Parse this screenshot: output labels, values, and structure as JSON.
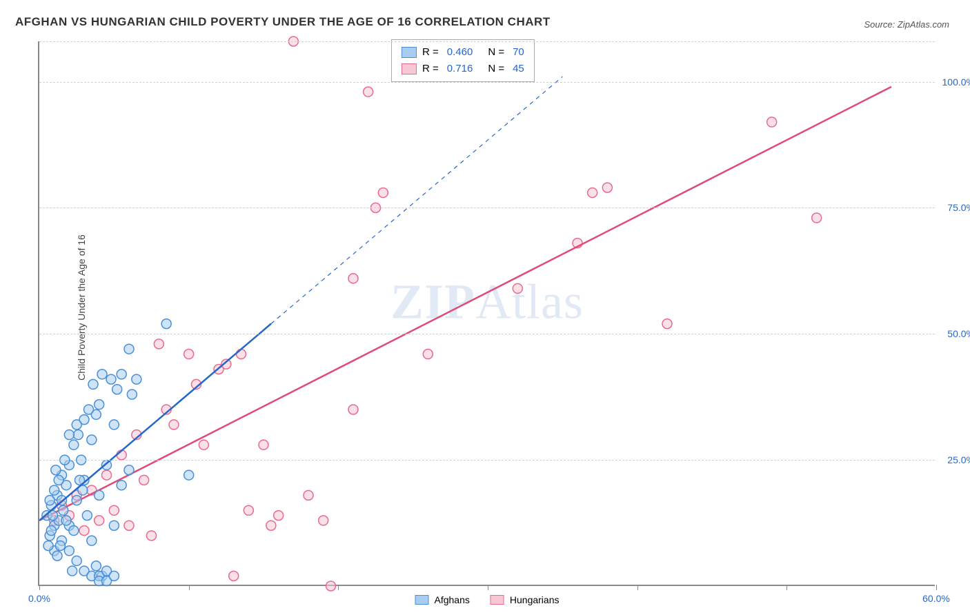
{
  "title": "AFGHAN VS HUNGARIAN CHILD POVERTY UNDER THE AGE OF 16 CORRELATION CHART",
  "source": "Source: ZipAtlas.com",
  "y_axis_label": "Child Poverty Under the Age of 16",
  "watermark_bold": "ZIP",
  "watermark_light": "Atlas",
  "chart": {
    "type": "scatter",
    "xlim": [
      0,
      60
    ],
    "ylim": [
      0,
      108
    ],
    "x_ticks": [
      0,
      10,
      20,
      30,
      40,
      50,
      60
    ],
    "x_labels_visible": {
      "0": "0.0%",
      "60": "60.0%"
    },
    "y_gridlines": [
      25,
      50,
      75,
      100,
      108
    ],
    "y_labels": {
      "25": "25.0%",
      "50": "50.0%",
      "75": "75.0%",
      "100": "100.0%"
    },
    "marker_radius": 7,
    "marker_stroke_width": 1.5,
    "background_color": "#ffffff",
    "grid_color": "#d0d0d0"
  },
  "series": {
    "afghans": {
      "label": "Afghans",
      "R": "0.460",
      "N": "70",
      "fill": "#a8cdf0",
      "stroke": "#4a8fd6",
      "line_color": "#2567c9",
      "line_width": 2.5,
      "trend": {
        "x1": 0,
        "y1": 13,
        "x2": 15.5,
        "y2": 52,
        "dash_to_x": 35,
        "dash_to_y": 101
      },
      "points": [
        [
          0.5,
          14
        ],
        [
          0.7,
          10
        ],
        [
          0.8,
          16
        ],
        [
          1.0,
          12
        ],
        [
          1.2,
          18
        ],
        [
          1.3,
          13
        ],
        [
          1.5,
          9
        ],
        [
          1.5,
          22
        ],
        [
          1.6,
          15
        ],
        [
          1.8,
          20
        ],
        [
          2.0,
          7
        ],
        [
          2.0,
          24
        ],
        [
          2.2,
          3
        ],
        [
          2.3,
          28
        ],
        [
          2.5,
          5
        ],
        [
          2.5,
          17
        ],
        [
          2.8,
          25
        ],
        [
          3.0,
          21
        ],
        [
          3.0,
          33
        ],
        [
          3.2,
          14
        ],
        [
          3.5,
          9
        ],
        [
          3.5,
          29
        ],
        [
          3.8,
          4
        ],
        [
          4.0,
          36
        ],
        [
          4.0,
          18
        ],
        [
          4.2,
          2
        ],
        [
          4.5,
          24
        ],
        [
          4.8,
          41
        ],
        [
          5.0,
          12
        ],
        [
          5.0,
          32
        ],
        [
          5.2,
          39
        ],
        [
          5.5,
          42
        ],
        [
          5.5,
          20
        ],
        [
          6.0,
          23
        ],
        [
          6.0,
          47
        ],
        [
          6.2,
          38
        ],
        [
          6.5,
          41
        ],
        [
          8.5,
          52
        ],
        [
          3.0,
          3
        ],
        [
          3.5,
          2
        ],
        [
          4.0,
          2
        ],
        [
          4.5,
          3
        ],
        [
          1.0,
          7
        ],
        [
          1.2,
          6
        ],
        [
          1.4,
          8
        ],
        [
          0.8,
          11
        ],
        [
          2.0,
          12
        ],
        [
          2.3,
          11
        ],
        [
          1.7,
          25
        ],
        [
          2.6,
          30
        ],
        [
          1.0,
          19
        ],
        [
          1.8,
          13
        ],
        [
          0.6,
          8
        ],
        [
          4.0,
          1
        ],
        [
          4.5,
          1
        ],
        [
          5.0,
          2
        ],
        [
          2.0,
          30
        ],
        [
          2.5,
          32
        ],
        [
          1.5,
          17
        ],
        [
          0.9,
          14
        ],
        [
          3.8,
          34
        ],
        [
          3.3,
          35
        ],
        [
          3.6,
          40
        ],
        [
          4.2,
          42
        ],
        [
          2.7,
          21
        ],
        [
          2.9,
          19
        ],
        [
          1.3,
          21
        ],
        [
          1.1,
          23
        ],
        [
          0.7,
          17
        ],
        [
          10,
          22
        ]
      ]
    },
    "hungarians": {
      "label": "Hungarians",
      "R": "0.716",
      "N": "45",
      "fill": "#f7c7d4",
      "stroke": "#e86a8c",
      "line_color": "#e04a78",
      "line_width": 2.5,
      "trend": {
        "x1": 0,
        "y1": 13,
        "x2": 57,
        "y2": 99
      },
      "points": [
        [
          1.0,
          13
        ],
        [
          1.5,
          16
        ],
        [
          2.0,
          14
        ],
        [
          2.5,
          18
        ],
        [
          3.0,
          11
        ],
        [
          3.5,
          19
        ],
        [
          4.0,
          13
        ],
        [
          4.5,
          22
        ],
        [
          5.0,
          15
        ],
        [
          5.5,
          26
        ],
        [
          6.0,
          12
        ],
        [
          6.5,
          30
        ],
        [
          7.0,
          21
        ],
        [
          7.5,
          10
        ],
        [
          8.0,
          48
        ],
        [
          8.5,
          35
        ],
        [
          9.0,
          32
        ],
        [
          10.0,
          46
        ],
        [
          10.5,
          40
        ],
        [
          11.0,
          28
        ],
        [
          12.0,
          43
        ],
        [
          12.5,
          44
        ],
        [
          13.0,
          2
        ],
        [
          13.5,
          46
        ],
        [
          14.0,
          15
        ],
        [
          15.0,
          28
        ],
        [
          15.5,
          12
        ],
        [
          16.0,
          14
        ],
        [
          17.0,
          108
        ],
        [
          18.0,
          18
        ],
        [
          19.0,
          13
        ],
        [
          19.5,
          0
        ],
        [
          21.0,
          35
        ],
        [
          21.0,
          61
        ],
        [
          22.0,
          98
        ],
        [
          22.5,
          75
        ],
        [
          23.0,
          78
        ],
        [
          26.0,
          46
        ],
        [
          32.0,
          59
        ],
        [
          36.0,
          68
        ],
        [
          37.0,
          78
        ],
        [
          38.0,
          79
        ],
        [
          42.0,
          52
        ],
        [
          49.0,
          92
        ],
        [
          52.0,
          73
        ]
      ]
    }
  },
  "legend_top": {
    "r_label": "R =",
    "n_label": "N ="
  },
  "axis_label_color": "#2567c9"
}
